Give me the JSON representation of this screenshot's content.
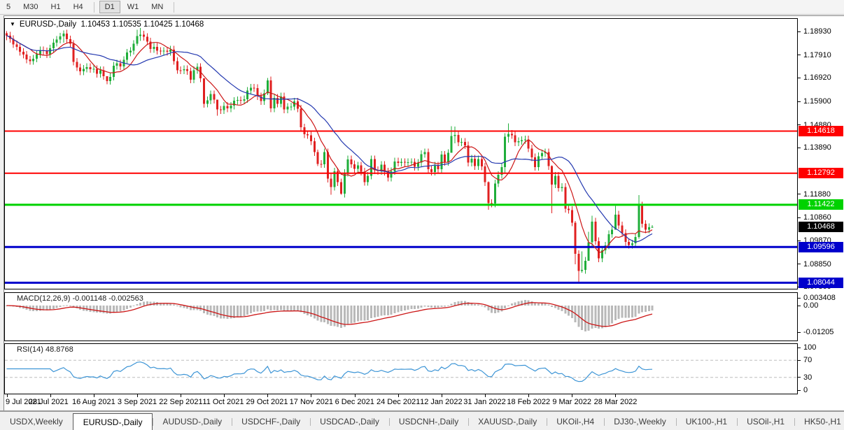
{
  "toolbar": {
    "timeframes": [
      "5",
      "M30",
      "H1",
      "H4",
      "D1",
      "W1",
      "MN"
    ],
    "active": "D1",
    "separators_before": [
      "D1"
    ],
    "separators_after": [
      "MN"
    ]
  },
  "chart": {
    "symbol_period": "EURUSD-,Daily",
    "quote": "1.10453 1.10535 1.10425 1.10468"
  },
  "tabs": {
    "items": [
      "USDX,Weekly",
      "EURUSD-,Daily",
      "AUDUSD-,Daily",
      "USDCHF-,Daily",
      "USDCAD-,Daily",
      "USDCNH-,Daily",
      "XAUUSD-,Daily",
      "UKOil-,H4",
      "DJ30-,Weekly",
      "UK100-,H1",
      "USOil-,H1",
      "HK50-,H1"
    ],
    "active_index": 1
  },
  "chart_data": {
    "type": "candlestick",
    "symbol": "EURUSD-",
    "timeframe": "Daily",
    "current_bar": {
      "open": 1.10453,
      "high": 1.10535,
      "low": 1.10425,
      "close": 1.10468
    },
    "x_dates": [
      "9 Jul 2021",
      "28 Jul 2021",
      "16 Aug 2021",
      "3 Sep 2021",
      "22 Sep 2021",
      "11 Oct 2021",
      "29 Oct 2021",
      "17 Nov 2021",
      "6 Dec 2021",
      "24 Dec 2021",
      "12 Jan 2022",
      "31 Jan 2022",
      "18 Feb 2022",
      "9 Mar 2022",
      "28 Mar 2022"
    ],
    "bars_per_date_tick": 13,
    "closes": [
      1.1876,
      1.1861,
      1.1838,
      1.1827,
      1.1805,
      1.1793,
      1.1772,
      1.1765,
      1.1776,
      1.1795,
      1.1812,
      1.1808,
      1.1795,
      1.182,
      1.1845,
      1.1858,
      1.1872,
      1.1885,
      1.186,
      1.184,
      1.1762,
      1.1738,
      1.172,
      1.1732,
      1.1739,
      1.173,
      1.1731,
      1.171,
      1.1726,
      1.17,
      1.1679,
      1.1697,
      1.1745,
      1.1755,
      1.1742,
      1.177,
      1.1802,
      1.181,
      1.184,
      1.1874,
      1.188,
      1.187,
      1.185,
      1.1817,
      1.1827,
      1.181,
      1.1808,
      1.181,
      1.1805,
      1.1815,
      1.1765,
      1.1726,
      1.1725,
      1.173,
      1.1722,
      1.1685,
      1.1726,
      1.174,
      1.169,
      1.158,
      1.1595,
      1.1622,
      1.1598,
      1.1555,
      1.1552,
      1.1571,
      1.156,
      1.1572,
      1.1593,
      1.1596,
      1.1594,
      1.16,
      1.1637,
      1.165,
      1.1648,
      1.1613,
      1.1592,
      1.1626,
      1.1682,
      1.156,
      1.1606,
      1.158,
      1.1612,
      1.1555,
      1.1567,
      1.1568,
      1.159,
      1.1559,
      1.1478,
      1.1448,
      1.1444,
      1.1417,
      1.137,
      1.132,
      1.1318,
      1.137,
      1.1255,
      1.122,
      1.1287,
      1.124,
      1.119,
      1.128,
      1.1339,
      1.1318,
      1.1298,
      1.1313,
      1.1286,
      1.1241,
      1.1268,
      1.134,
      1.1292,
      1.1289,
      1.1316,
      1.1286,
      1.126,
      1.1288,
      1.133,
      1.1324,
      1.1328,
      1.1325,
      1.1327,
      1.1328,
      1.1307,
      1.1325,
      1.1362,
      1.137,
      1.1297,
      1.1285,
      1.1312,
      1.1296,
      1.136,
      1.1328,
      1.1367,
      1.144,
      1.1445,
      1.1413,
      1.1415,
      1.14,
      1.1325,
      1.1342,
      1.131,
      1.134,
      1.1308,
      1.124,
      1.115,
      1.1148,
      1.1235,
      1.1272,
      1.1305,
      1.1438,
      1.145,
      1.1444,
      1.1413,
      1.1418,
      1.1423,
      1.1426,
      1.1386,
      1.1348,
      1.1306,
      1.1353,
      1.1366,
      1.137,
      1.131,
      1.123,
      1.1268,
      1.1215,
      1.122,
      1.1125,
      1.112,
      1.1065,
      1.093,
      1.0855,
      1.086,
      1.09,
      1.098,
      1.107,
      1.0985,
      1.091,
      1.0945,
      1.0966,
      1.1015,
      1.1035,
      1.11,
      1.1053,
      1.102,
      1.0981,
      1.0968,
      1.0975,
      1.1002,
      1.114,
      1.106,
      1.1035,
      1.10453,
      1.10468
    ],
    "wick_overrides": {
      "0": [
        1.1895,
        1.1855
      ],
      "17": [
        1.1898,
        1.1845
      ],
      "30": [
        1.1692,
        1.1664
      ],
      "39": [
        1.1901,
        1.1832
      ],
      "40": [
        1.1909,
        1.1852
      ],
      "59": [
        1.1605,
        1.1563
      ],
      "63": [
        1.1588,
        1.1529
      ],
      "78": [
        1.1692,
        1.1617
      ],
      "93": [
        1.1382,
        1.131
      ],
      "97": [
        1.1277,
        1.1186
      ],
      "100": [
        1.1255,
        1.1186
      ],
      "133": [
        1.1483,
        1.1398
      ],
      "134": [
        1.1482,
        1.1408
      ],
      "144": [
        1.1244,
        1.1121
      ],
      "149": [
        1.1452,
        1.128
      ],
      "150": [
        1.1495,
        1.1411
      ],
      "163": [
        1.1313,
        1.1106
      ],
      "170": [
        1.1072,
        1.0885
      ],
      "171": [
        1.0945,
        1.0806
      ],
      "172": [
        1.094,
        1.0848
      ],
      "174": [
        1.1025,
        1.0955
      ],
      "175": [
        1.1095,
        1.096
      ],
      "182": [
        1.1137,
        1.104
      ],
      "189": [
        1.1185,
        1.0995
      ],
      "193": [
        1.10535,
        1.10425
      ]
    },
    "default_wick_pad": 0.0016,
    "colors": {
      "up": "#1fae3a",
      "down": "#e02020",
      "ma_fast": "#cc1616",
      "ma_slow": "#2439b0"
    },
    "moving_averages": [
      {
        "period": 8,
        "color": "#cc1616"
      },
      {
        "period": 20,
        "color": "#2439b0"
      }
    ],
    "ylim": [
      1.0784,
      1.1951
    ],
    "price_axis_ticks": [
      "1.18930",
      "1.17910",
      "1.16920",
      "1.15900",
      "1.14880",
      "1.13890",
      "1.11880",
      "1.10860",
      "1.09870",
      "1.08850",
      "1.07860"
    ],
    "hlines": [
      {
        "price": 1.14618,
        "label": "1.14618",
        "color": "#ff0000",
        "width": 2
      },
      {
        "price": 1.12792,
        "label": "1.12792",
        "color": "#ff0000",
        "width": 2
      },
      {
        "price": 1.11422,
        "label": "1.11422",
        "color": "#00d200",
        "width": 3
      },
      {
        "price": 1.09596,
        "label": "1.09596",
        "color": "#0000cc",
        "width": 3
      },
      {
        "price": 1.08044,
        "label": "1.08044",
        "color": "#0000cc",
        "width": 3
      }
    ],
    "current_price_badge": {
      "price": 1.10468,
      "label": "1.10468",
      "color": "#000000"
    },
    "macd": {
      "label": "MACD(12,26,9)",
      "value_main": "-0.001148",
      "value_signal": "-0.002563",
      "params": [
        12,
        26,
        9
      ],
      "axis_labels": [
        "0.003408",
        "0.00",
        "-0.01205"
      ],
      "hist_color": "#b9b9b9",
      "signal_color": "#cc1616"
    },
    "rsi": {
      "label": "RSI(14)",
      "value": "48.8768",
      "period": 14,
      "axis_labels": [
        "100",
        "70",
        "30",
        "0"
      ],
      "levels": [
        70,
        30
      ],
      "line_color": "#3d95d6",
      "level_color": "#bdbdbd"
    }
  }
}
